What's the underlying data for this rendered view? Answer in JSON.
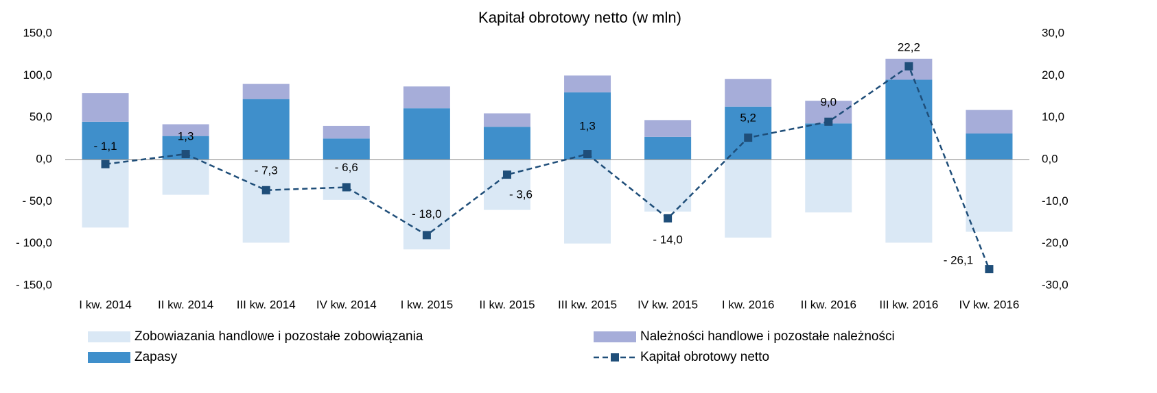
{
  "chart_data": {
    "type": "bar",
    "title": "Kapitał obrotowy netto (w mln)",
    "categories": [
      "I kw. 2014",
      "II kw. 2014",
      "III kw. 2014",
      "IV kw. 2014",
      "I kw. 2015",
      "II kw. 2015",
      "III kw. 2015",
      "IV kw. 2015",
      "I kw. 2016",
      "II kw. 2016",
      "III kw. 2016",
      "IV kw. 2016"
    ],
    "series": [
      {
        "name": "Zobowiazania handlowe i pozostałe zobowiązania",
        "color": "#dae8f5",
        "values": [
          -81,
          -42,
          -99,
          -48,
          -107,
          -60,
          -100,
          -62,
          -93,
          -63,
          -99,
          -86
        ]
      },
      {
        "name": "Należności handlowe i pozostałe należności",
        "color": "#a6add9",
        "values": [
          34,
          14,
          18,
          15,
          26,
          16,
          20,
          20,
          33,
          27,
          25,
          28
        ]
      },
      {
        "name": "Zapasy",
        "color": "#3f8fcb",
        "values": [
          45,
          28,
          72,
          25,
          61,
          39,
          80,
          27,
          63,
          43,
          95,
          31
        ]
      },
      {
        "name": "Kapitał obrotowy netto",
        "color": "#1f4e79",
        "axis": "y2",
        "type": "line",
        "values": [
          -1.1,
          1.3,
          -7.3,
          -6.6,
          -18.0,
          -3.6,
          1.3,
          -14.0,
          5.2,
          9.0,
          22.2,
          -26.1
        ],
        "value_labels": [
          "- 1,1",
          "1,3",
          "- 7,3",
          "- 6,6",
          "- 18,0",
          "- 3,6",
          "1,3",
          "- 14,0",
          "5,2",
          "9,0",
          "22,2",
          "- 26,1"
        ]
      }
    ],
    "ylim": [
      -150,
      150
    ],
    "yticks": [
      {
        "value": -150,
        "label": "- 150,0"
      },
      {
        "value": -100,
        "label": "- 100,0"
      },
      {
        "value": -50,
        "label": "- 50,0"
      },
      {
        "value": 0,
        "label": "0,0"
      },
      {
        "value": 50,
        "label": "50,0"
      },
      {
        "value": 100,
        "label": "100,0"
      },
      {
        "value": 150,
        "label": "150,0"
      }
    ],
    "y2lim": [
      -30,
      30
    ],
    "y2ticks": [
      {
        "value": -30,
        "label": "-30,0"
      },
      {
        "value": -20,
        "label": "-20,0"
      },
      {
        "value": -10,
        "label": "-10,0"
      },
      {
        "value": 0,
        "label": "0,0"
      },
      {
        "value": 10,
        "label": "10,0"
      },
      {
        "value": 20,
        "label": "20,0"
      },
      {
        "value": 30,
        "label": "30,0"
      }
    ],
    "grid": false
  }
}
